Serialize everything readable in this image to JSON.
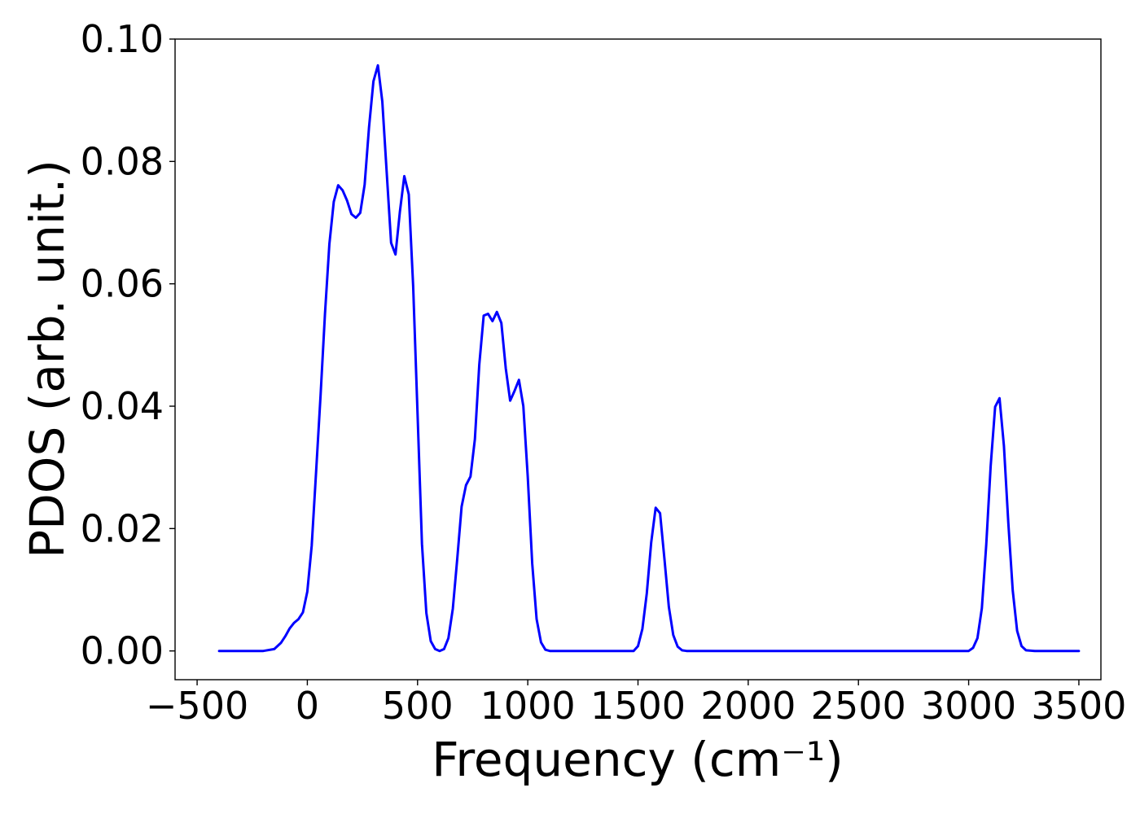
{
  "chart_data": {
    "type": "line",
    "xlabel": "Frequency (cm⁻¹)",
    "ylabel": "PDOS (arb. unit.)",
    "xlim": [
      -600,
      3600
    ],
    "ylim": [
      -0.0047,
      0.1
    ],
    "xticks": [
      -500,
      0,
      500,
      1000,
      1500,
      2000,
      2500,
      3000,
      3500
    ],
    "xtick_labels": [
      "−500",
      "0",
      "500",
      "1000",
      "1500",
      "2000",
      "2500",
      "3000",
      "3500"
    ],
    "yticks": [
      0.0,
      0.02,
      0.04,
      0.06,
      0.08,
      0.1
    ],
    "ytick_labels": [
      "0.00",
      "0.02",
      "0.04",
      "0.06",
      "0.08",
      "0.10"
    ],
    "grid": false,
    "series": [
      {
        "color": "#0000ff",
        "x": [
          -400,
          -200,
          -150,
          -120,
          -100,
          -80,
          -60,
          -40,
          -20,
          0,
          20,
          40,
          60,
          80,
          100,
          120,
          140,
          160,
          180,
          200,
          220,
          240,
          260,
          280,
          300,
          320,
          340,
          360,
          380,
          400,
          420,
          440,
          460,
          480,
          500,
          520,
          540,
          560,
          580,
          600,
          620,
          640,
          660,
          680,
          700,
          720,
          740,
          760,
          780,
          800,
          820,
          840,
          860,
          880,
          900,
          920,
          940,
          960,
          980,
          1000,
          1020,
          1040,
          1060,
          1080,
          1100,
          1480,
          1500,
          1520,
          1540,
          1560,
          1580,
          1600,
          1620,
          1640,
          1660,
          1680,
          1700,
          1720,
          3000,
          3020,
          3040,
          3060,
          3080,
          3100,
          3120,
          3140,
          3160,
          3180,
          3200,
          3220,
          3240,
          3260,
          3300,
          3500
        ],
        "y": [
          0.0,
          0.0,
          0.0003,
          0.0013,
          0.0024,
          0.0037,
          0.0046,
          0.0052,
          0.0063,
          0.0097,
          0.0172,
          0.0295,
          0.0418,
          0.0551,
          0.0665,
          0.0734,
          0.0761,
          0.0753,
          0.0736,
          0.0714,
          0.0708,
          0.0716,
          0.0762,
          0.0856,
          0.0931,
          0.0957,
          0.0898,
          0.0782,
          0.0667,
          0.0648,
          0.0718,
          0.0776,
          0.0746,
          0.0596,
          0.0387,
          0.0175,
          0.0062,
          0.0016,
          0.0003,
          0.0,
          0.0003,
          0.0021,
          0.0069,
          0.015,
          0.0236,
          0.0271,
          0.0285,
          0.0346,
          0.0468,
          0.0548,
          0.0551,
          0.0539,
          0.0554,
          0.0536,
          0.0462,
          0.0409,
          0.0425,
          0.0443,
          0.04,
          0.0285,
          0.0143,
          0.0052,
          0.0014,
          0.0002,
          0.0,
          0.0,
          0.0008,
          0.0036,
          0.0094,
          0.0177,
          0.0234,
          0.0225,
          0.015,
          0.0072,
          0.0026,
          0.0007,
          0.0001,
          0.0,
          0.0,
          0.0005,
          0.0021,
          0.007,
          0.0174,
          0.0302,
          0.0399,
          0.0413,
          0.0335,
          0.0209,
          0.0099,
          0.0033,
          0.0008,
          0.0001,
          0.0,
          0.0
        ]
      }
    ]
  }
}
